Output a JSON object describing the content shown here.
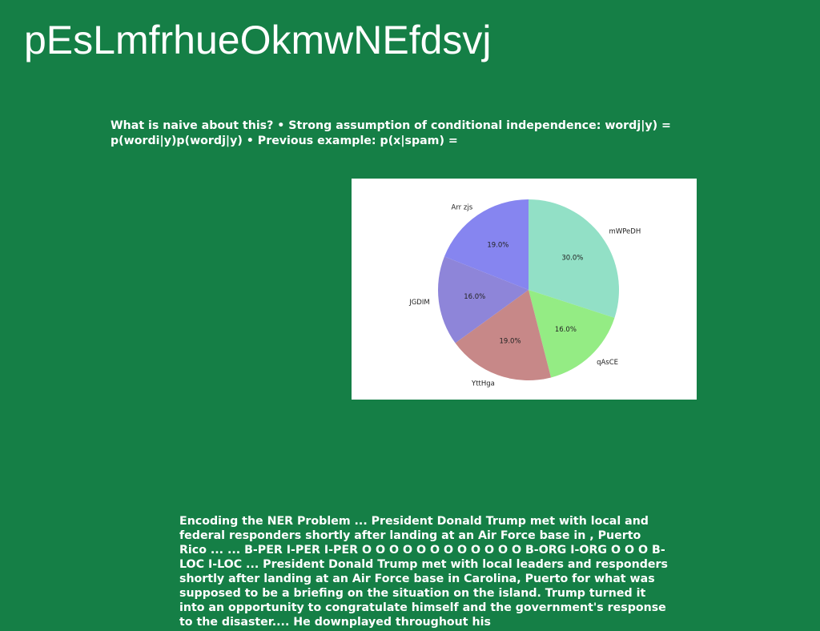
{
  "slide": {
    "title": "pEsLmfrhueOkmwNEfdsvj",
    "paragraph_top": "What is naive about this? • Strong assumption of conditional independence: wordj|y) = p(wordi|y)p(wordj|y) • Previous example: p(x|spam) =",
    "paragraph_bottom": "Encoding the NER Problem ... President Donald Trump met with local and federal responders shortly after landing at an Air Force base in , Puerto Rico ... ... B-PER I-PER I-PER O O O O O O O O O O O O B-ORG I-ORG O O O B-LOC I-LOC ... President Donald Trump met with local leaders and responders shortly after landing at an Air Force base in Carolina, Puerto for what was supposed to be a briefing on the situation on the island. Trump turned it into an opportunity to congratulate himself and the government's response to the disaster.... He downplayed throughout his"
  },
  "colors": {
    "background": "#157f46",
    "text": "#ffffff"
  },
  "chart_data": {
    "type": "pie",
    "start_angle_deg": 90,
    "direction": "clockwise",
    "slices": [
      {
        "label": "mWPeDH",
        "value": 30.0,
        "pct_label": "30.0%",
        "color": "#92e0c6"
      },
      {
        "label": "qAsCE",
        "value": 16.0,
        "pct_label": "16.0%",
        "color": "#94ec84"
      },
      {
        "label": "YttHga",
        "value": 19.0,
        "pct_label": "19.0%",
        "color": "#c78888"
      },
      {
        "label": "JGDIM",
        "value": 16.0,
        "pct_label": "16.0%",
        "color": "#8e85d9"
      },
      {
        "label": "Arr zjs",
        "value": 19.0,
        "pct_label": "19.0%",
        "color": "#8685f0"
      }
    ]
  }
}
